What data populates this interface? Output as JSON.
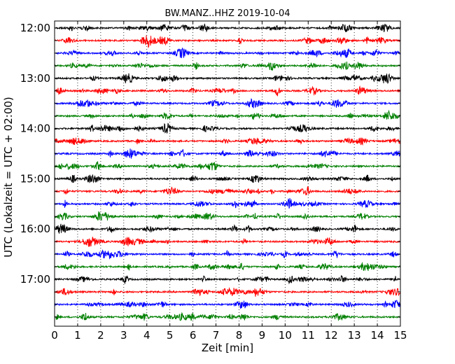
{
  "chart_data": {
    "type": "line",
    "title": "BW.MANZ..HHZ 2019-10-04",
    "xlabel": "Zeit  [min]",
    "ylabel": "UTC (Lokalzeit = UTC + 02:00)",
    "xlim": [
      0,
      15
    ],
    "x_ticks": [
      "0",
      "1",
      "2",
      "3",
      "4",
      "5",
      "6",
      "7",
      "8",
      "9",
      "10",
      "11",
      "12",
      "13",
      "14",
      "15"
    ],
    "y_tick_labels": [
      "12:00",
      "13:00",
      "14:00",
      "15:00",
      "16:00",
      "17:00"
    ],
    "row_start_times": [
      "12:00",
      "12:15",
      "12:30",
      "12:45",
      "13:00",
      "13:15",
      "13:30",
      "13:45",
      "14:00",
      "14:15",
      "14:30",
      "14:45",
      "15:00",
      "15:15",
      "15:30",
      "15:45",
      "16:00",
      "16:15",
      "16:30",
      "16:45",
      "17:00",
      "17:15",
      "17:30",
      "17:45"
    ],
    "row_colors": [
      "#000000",
      "#ff0000",
      "#0000ff",
      "#008000"
    ],
    "vertical_grid": "dotted, every minute",
    "row_minutes": 15
  }
}
